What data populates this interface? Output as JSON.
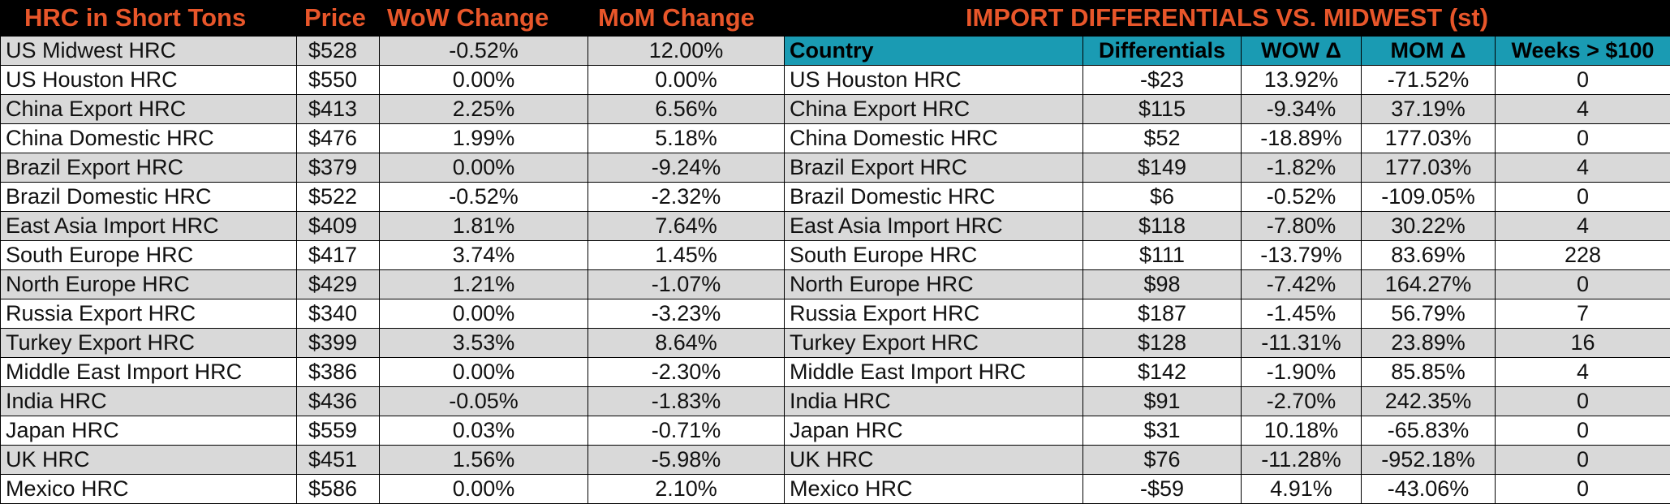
{
  "left": {
    "headers": [
      "HRC in Short Tons",
      "Price",
      "WoW Change",
      "MoM Change"
    ],
    "rows": [
      [
        "US Midwest HRC",
        "$528",
        "-0.52%",
        "12.00%"
      ],
      [
        "US Houston HRC",
        "$550",
        "0.00%",
        "0.00%"
      ],
      [
        "China Export HRC",
        "$413",
        "2.25%",
        "6.56%"
      ],
      [
        "China Domestic HRC",
        "$476",
        "1.99%",
        "5.18%"
      ],
      [
        "Brazil Export HRC",
        "$379",
        "0.00%",
        "-9.24%"
      ],
      [
        "Brazil Domestic HRC",
        "$522",
        "-0.52%",
        "-2.32%"
      ],
      [
        "East Asia Import HRC",
        "$409",
        "1.81%",
        "7.64%"
      ],
      [
        "South Europe HRC",
        "$417",
        "3.74%",
        "1.45%"
      ],
      [
        "North Europe HRC",
        "$429",
        "1.21%",
        "-1.07%"
      ],
      [
        "Russia Export HRC",
        "$340",
        "0.00%",
        "-3.23%"
      ],
      [
        "Turkey Export HRC",
        "$399",
        "3.53%",
        "8.64%"
      ],
      [
        "Middle East Import HRC",
        "$386",
        "0.00%",
        "-2.30%"
      ],
      [
        "India HRC",
        "$436",
        "-0.05%",
        "-1.83%"
      ],
      [
        "Japan HRC",
        "$559",
        "0.03%",
        "-0.71%"
      ],
      [
        "UK HRC",
        "$451",
        "1.56%",
        "-5.98%"
      ],
      [
        "Mexico HRC",
        "$586",
        "0.00%",
        "2.10%"
      ]
    ]
  },
  "right": {
    "title": "IMPORT DIFFERENTIALS VS. MIDWEST (st)",
    "headers": [
      "Country",
      "Differentials",
      "WOW Δ",
      "MOM Δ",
      "Weeks > $100"
    ],
    "rows": [
      [
        "US Houston HRC",
        "-$23",
        "13.92%",
        "-71.52%",
        "0"
      ],
      [
        "China Export HRC",
        "$115",
        "-9.34%",
        "37.19%",
        "4"
      ],
      [
        "China Domestic HRC",
        "$52",
        "-18.89%",
        "177.03%",
        "0"
      ],
      [
        "Brazil Export HRC",
        "$149",
        "-1.82%",
        "177.03%",
        "4"
      ],
      [
        "Brazil Domestic HRC",
        "$6",
        "-0.52%",
        "-109.05%",
        "0"
      ],
      [
        "East Asia Import HRC",
        "$118",
        "-7.80%",
        "30.22%",
        "4"
      ],
      [
        "South Europe HRC",
        "$111",
        "-13.79%",
        "83.69%",
        "228"
      ],
      [
        "North Europe HRC",
        "$98",
        "-7.42%",
        "164.27%",
        "0"
      ],
      [
        "Russia Export HRC",
        "$187",
        "-1.45%",
        "56.79%",
        "7"
      ],
      [
        "Turkey Export HRC",
        "$128",
        "-11.31%",
        "23.89%",
        "16"
      ],
      [
        "Middle East Import HRC",
        "$142",
        "-1.90%",
        "85.85%",
        "4"
      ],
      [
        "India HRC",
        "$91",
        "-2.70%",
        "242.35%",
        "0"
      ],
      [
        "Japan HRC",
        "$31",
        "10.18%",
        "-65.83%",
        "0"
      ],
      [
        "UK HRC",
        "$76",
        "-11.28%",
        "-952.18%",
        "0"
      ],
      [
        "Mexico HRC",
        "-$59",
        "4.91%",
        "-43.06%",
        "0"
      ]
    ]
  },
  "colors": {
    "background": "#000000",
    "title_orange": "#e8562a",
    "header_teal": "#1a9bb3",
    "row_gray": "#d9d9d9",
    "row_white": "#ffffff"
  }
}
